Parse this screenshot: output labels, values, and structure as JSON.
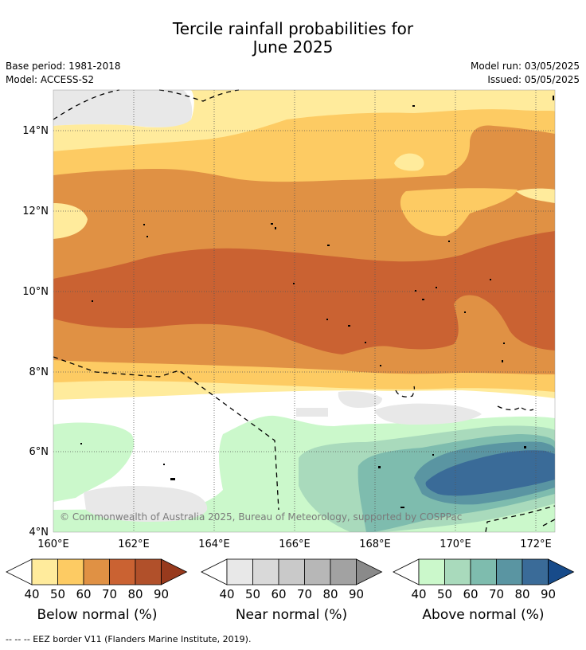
{
  "title_line1": "Tercile rainfall probabilities for",
  "title_line2": "June 2025",
  "base_period": "Base period: 1981-2018",
  "model": "Model: ACCESS-S2",
  "model_run": "Model run: 03/05/2025",
  "issued": "Issued: 05/05/2025",
  "copyright": "© Commonwealth of Australia 2025, Bureau of Meteorology, supported by COSPPac",
  "lat_labels": [
    "14°N",
    "12°N",
    "10°N",
    "8°N",
    "6°N",
    "4°N"
  ],
  "lon_labels": [
    "160°E",
    "162°E",
    "164°E",
    "166°E",
    "168°E",
    "170°E",
    "172°E"
  ],
  "colorbars": {
    "below": {
      "title": "Below normal (%)",
      "ticks": [
        "40",
        "50",
        "60",
        "70",
        "80",
        "90"
      ],
      "colors": [
        "#ffeb9c",
        "#fdcb63",
        "#e09144",
        "#ca6232",
        "#b1502a",
        "#983a1d"
      ]
    },
    "near": {
      "title": "Near normal (%)",
      "ticks": [
        "40",
        "50",
        "60",
        "70",
        "80",
        "90"
      ],
      "colors": [
        "#e8e8e8",
        "#d9d9d9",
        "#c9c9c9",
        "#b7b7b7",
        "#a2a2a2",
        "#8a8a8a"
      ]
    },
    "above": {
      "title": "Above normal (%)",
      "ticks": [
        "40",
        "50",
        "60",
        "70",
        "80",
        "90"
      ],
      "colors": [
        "#cbf8cb",
        "#a9dabc",
        "#7ebcae",
        "#5a95a2",
        "#3a6b98",
        "#174b8a"
      ]
    }
  },
  "footer": "--  --  -- EEZ border V11 (Flanders Marine Institute, 2019)."
}
